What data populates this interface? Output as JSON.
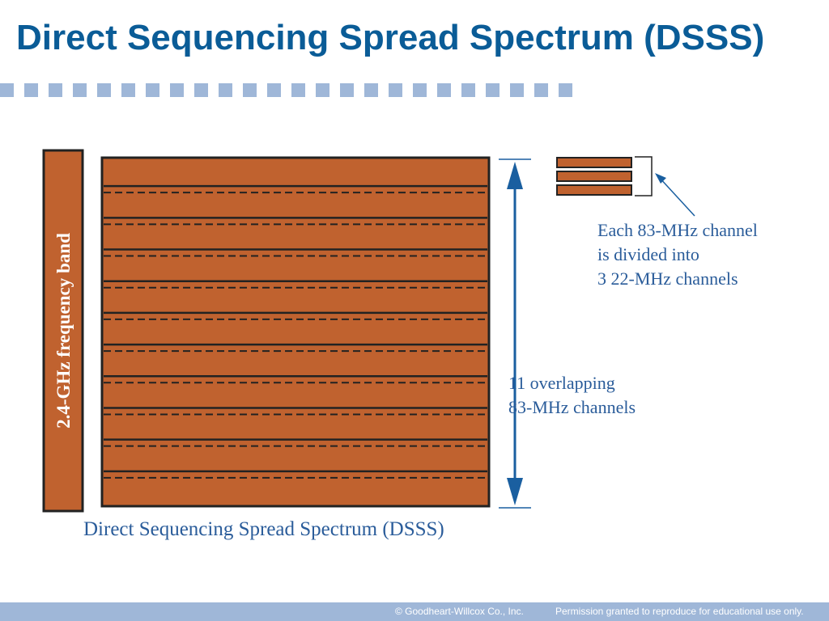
{
  "slide": {
    "title": "Direct Sequencing Spread Spectrum (DSSS)"
  },
  "diagram": {
    "band_label": "2.4-GHz frequency band",
    "caption": "Direct Sequencing Spread Spectrum (DSSS)",
    "channel_count": 11,
    "subchannels_per_channel": 3,
    "range_label": [
      "11 overlapping",
      "83-MHz channels"
    ],
    "callout_label": [
      "Each 83-MHz channel",
      "is divided into",
      "3 22-MHz channels"
    ]
  },
  "colors": {
    "title": "#0a5c97",
    "divider": "#9fb7d8",
    "band_fill": "#c0622f",
    "arrow": "#1a5fa0",
    "caption": "#2a5c9a",
    "footer": "#9fb7d8"
  },
  "footer": {
    "copyright": "© Goodheart-Willcox Co., Inc.",
    "permission": "Permission granted to reproduce for educational use only."
  }
}
